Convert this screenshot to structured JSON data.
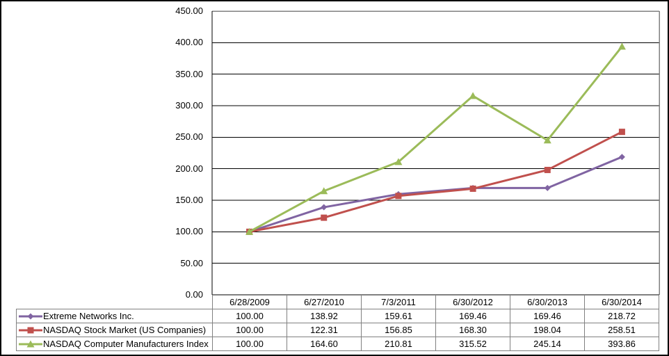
{
  "chart_data": {
    "type": "line",
    "title": "",
    "xlabel": "",
    "ylabel": "",
    "ylim": [
      0,
      450
    ],
    "ytick_step": 50,
    "ytick_labels": [
      "0.00",
      "50.00",
      "100.00",
      "150.00",
      "200.00",
      "250.00",
      "300.00",
      "350.00",
      "400.00",
      "450.00"
    ],
    "grid": "horizontal",
    "legend_position": "table-left",
    "categories": [
      "6/28/2009",
      "6/27/2010",
      "7/3/2011",
      "6/30/2012",
      "6/30/2013",
      "6/30/2014"
    ],
    "series": [
      {
        "name": "Extreme Networks Inc.",
        "color": "#8064A2",
        "marker": "diamond",
        "values": [
          100.0,
          138.92,
          159.61,
          169.46,
          169.46,
          218.72
        ]
      },
      {
        "name": "NASDAQ Stock Market (US Companies)",
        "color": "#C0504D",
        "marker": "square",
        "values": [
          100.0,
          122.31,
          156.85,
          168.3,
          198.04,
          258.51
        ]
      },
      {
        "name": "NASDAQ Computer Manufacturers Index",
        "color": "#9BBB59",
        "marker": "triangle",
        "values": [
          100.0,
          164.6,
          210.81,
          315.52,
          245.14,
          393.86
        ]
      }
    ],
    "colors": {
      "gridline": "#000000",
      "axis": "#000000",
      "plot_border": "#808080",
      "table_border": "#808080",
      "text": "#000000",
      "background": "#ffffff"
    }
  }
}
